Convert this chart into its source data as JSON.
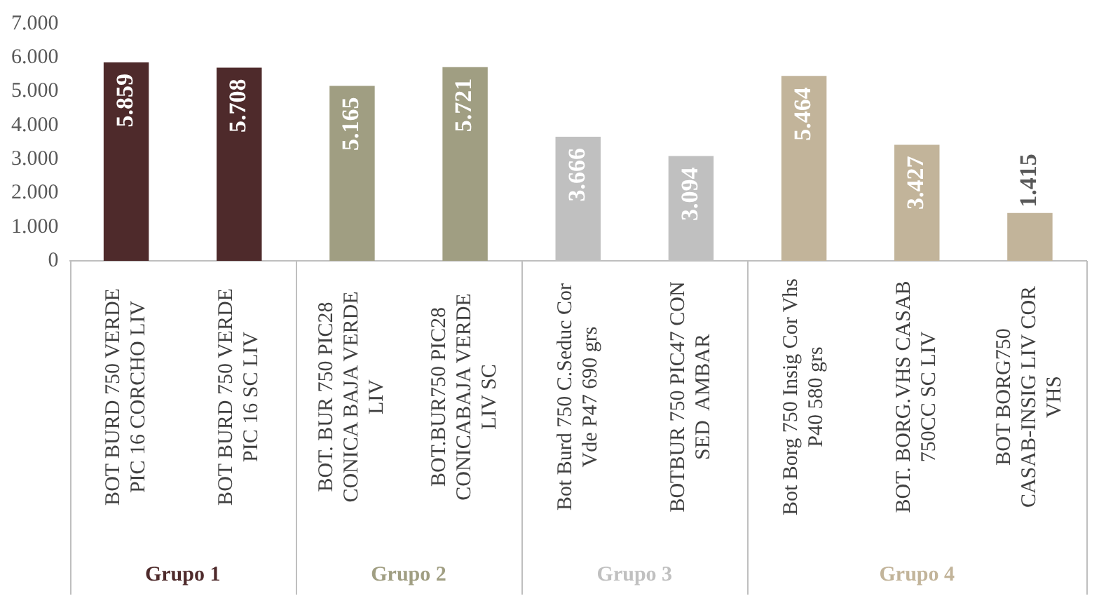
{
  "chart_data": {
    "type": "bar",
    "categories": [
      "BOT BURD 750 VERDE PIC 16 CORCHO LIV",
      "BOT BURD 750 VERDE PIC 16 SC LIV",
      "BOT. BUR 750 PIC28 CONICA BAJA VERDE LIV",
      "BOT.BUR750 PIC28 CONICABAJA VERDE LIV SC",
      "Bot Burd 750 C.Seduc Cor Vde P47 690 grs",
      "BOTBUR 750 PIC47 CON SED  AMBAR",
      "Bot Borg 750 Insig Cor Vhs P40 580 grs",
      "BOT. BORG.VHS CASAB 750CC SC LIV",
      "BOT BORG750 CASAB-INSIG LIV COR VHS"
    ],
    "series": [
      {
        "name": "Grupo 1",
        "color": "#4e2a2b",
        "values": [
          5859,
          5708,
          null,
          null,
          null,
          null,
          null,
          null,
          null
        ],
        "value_labels": [
          "5.859",
          "5.708",
          null,
          null,
          null,
          null,
          null,
          null,
          null
        ]
      },
      {
        "name": "Grupo 2",
        "color": "#a09e82",
        "values": [
          null,
          null,
          5165,
          5721,
          null,
          null,
          null,
          null,
          null
        ],
        "value_labels": [
          null,
          null,
          "5.165",
          "5.721",
          null,
          null,
          null,
          null,
          null
        ]
      },
      {
        "name": "Grupo 3",
        "color": "#c0c0c0",
        "values": [
          null,
          null,
          null,
          null,
          3666,
          3094,
          null,
          null,
          null
        ],
        "value_labels": [
          null,
          null,
          null,
          null,
          "3.666",
          "3.094",
          null,
          null,
          null
        ]
      },
      {
        "name": "Grupo 4",
        "color": "#c2b49a",
        "values": [
          null,
          null,
          null,
          null,
          null,
          null,
          5464,
          3427,
          1415
        ],
        "value_labels": [
          null,
          null,
          null,
          null,
          null,
          null,
          "5.464",
          "3.427",
          "1.415"
        ]
      }
    ],
    "ylim": [
      0,
      7000
    ],
    "yticks": [
      0,
      {
        "value": 1000,
        "label": "1.000"
      },
      {
        "value": 2000,
        "label": "2.000"
      },
      {
        "value": 3000,
        "label": "3.000"
      },
      {
        "value": 4000,
        "label": "4.000"
      },
      {
        "value": 5000,
        "label": "5.000"
      },
      {
        "value": 6000,
        "label": "6.000"
      },
      {
        "value": 7000,
        "label": "7.000"
      }
    ],
    "grid": false,
    "legend": false
  }
}
